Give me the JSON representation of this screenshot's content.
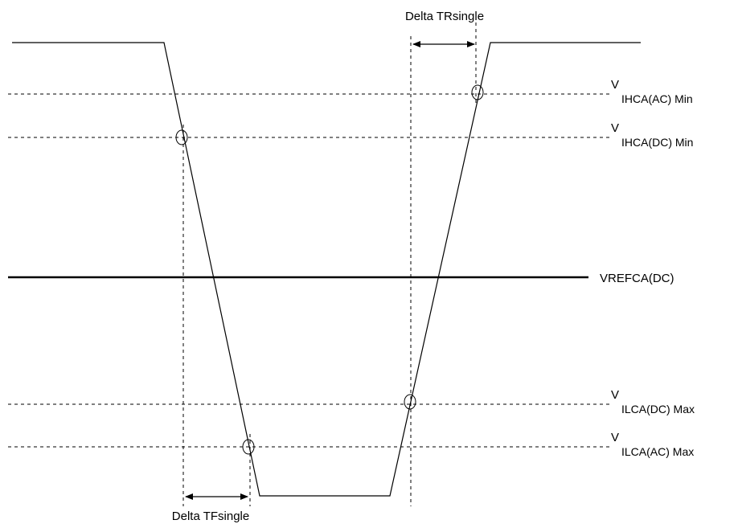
{
  "labels": {
    "delta_tr": "Delta TRsingle",
    "delta_tf": "Delta TFsingle",
    "vref": "VREFCA(DC)",
    "vihca_ac": {
      "main": "V",
      "sub": "IHCA(AC) Min"
    },
    "vihca_dc": {
      "main": "V",
      "sub": "IHCA(DC) Min"
    },
    "vilca_dc": {
      "main": "V",
      "sub": "ILCA(DC) Max"
    },
    "vilca_ac": {
      "main": "V",
      "sub": "ILCA(AC) Max"
    }
  }
}
